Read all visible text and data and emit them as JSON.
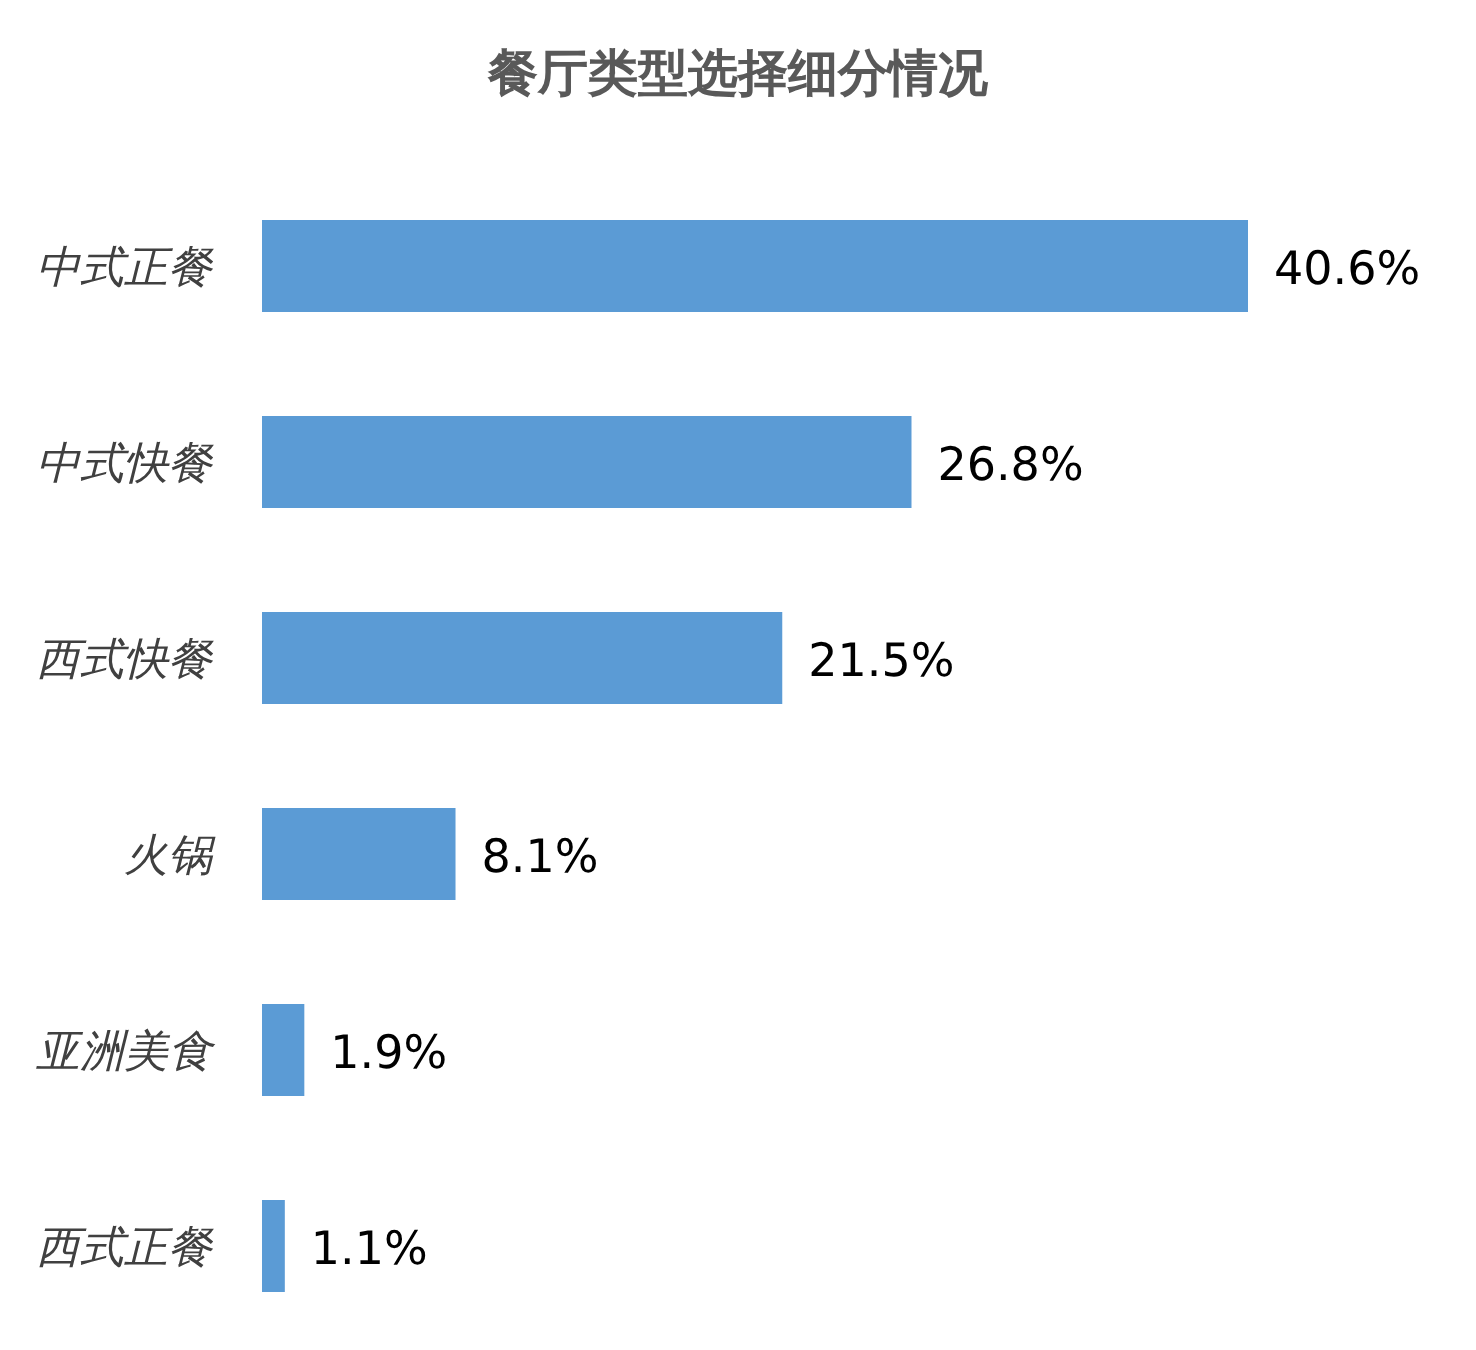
{
  "chart_data": {
    "type": "bar",
    "title": "餐厅类型选择细分情况",
    "orientation": "horizontal",
    "color": "#5b9bd5",
    "categories": [
      "中式正餐",
      "中式快餐",
      "西式快餐",
      "火锅",
      "亚洲美食",
      "西式正餐"
    ],
    "values": [
      40.6,
      26.8,
      21.5,
      8.1,
      1.9,
      1.1
    ],
    "value_labels": [
      "40.6%",
      "26.8%",
      "21.5%",
      "8.1%",
      "1.9%",
      "1.1%"
    ]
  }
}
